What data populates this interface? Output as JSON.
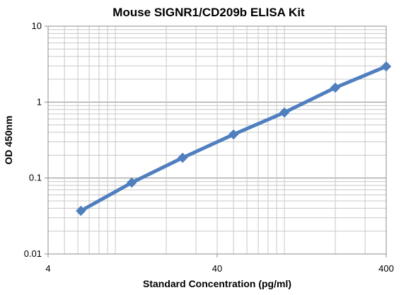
{
  "chart_data": {
    "type": "line",
    "title": "Mouse SIGNR1/CD209b ELISA Kit",
    "xlabel": "Standard Concentration (pg/ml)",
    "ylabel": "OD 450nm",
    "x_scale": "log",
    "y_scale": "log",
    "xlim": [
      4,
      400
    ],
    "ylim": [
      0.01,
      10
    ],
    "x_ticks": [
      "4",
      "40",
      "400"
    ],
    "y_ticks": [
      "10",
      "1",
      "0.1",
      "0.01"
    ],
    "grid": true,
    "legend": "none",
    "series": [
      {
        "color": "#4f7fbf",
        "x": [
          6.25,
          12.5,
          25,
          50,
          100,
          200,
          400
        ],
        "y": [
          0.037,
          0.087,
          0.185,
          0.375,
          0.73,
          1.55,
          2.95
        ]
      }
    ]
  }
}
